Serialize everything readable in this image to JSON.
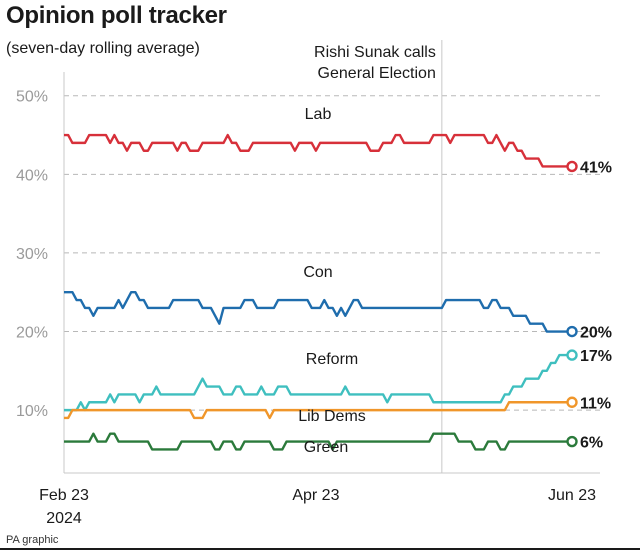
{
  "chart_data": {
    "type": "line",
    "title": "Opinion poll tracker",
    "subtitle": "(seven-day rolling average)",
    "credit": "PA graphic",
    "y_ticks": [
      "10%",
      "20%",
      "30%",
      "40%",
      "50%"
    ],
    "y_tick_values": [
      10,
      20,
      30,
      40,
      50
    ],
    "ylim": [
      2,
      52
    ],
    "x_ticks": [
      {
        "label": "Feb 23",
        "sublabel": "2024",
        "day": 0
      },
      {
        "label": "Apr 23",
        "sublabel": "",
        "day": 60
      },
      {
        "label": "Jun 23",
        "sublabel": "",
        "day": 121
      }
    ],
    "xlim": [
      0,
      121
    ],
    "annotation": {
      "text_line1": "Rishi Sunak calls",
      "text_line2": "General Election",
      "day": 90
    },
    "grid": "dashed-horizontal",
    "series": [
      {
        "name": "Lab",
        "color": "#d7303a",
        "end_label": "41%",
        "values": [
          45,
          45,
          44,
          44,
          44,
          44,
          45,
          45,
          45,
          45,
          45,
          44,
          45,
          44,
          44,
          43,
          44,
          44,
          44,
          43,
          43,
          44,
          44,
          44,
          44,
          44,
          44,
          43,
          44,
          44,
          43,
          43,
          43,
          44,
          44,
          44,
          44,
          44,
          44,
          45,
          44,
          44,
          43,
          43,
          43,
          44,
          44,
          44,
          44,
          44,
          44,
          44,
          44,
          44,
          44,
          43,
          44,
          44,
          44,
          44,
          43,
          44,
          44,
          44,
          44,
          44,
          44,
          44,
          44,
          44,
          44,
          44,
          44,
          43,
          43,
          43,
          44,
          44,
          44,
          45,
          45,
          44,
          44,
          44,
          44,
          44,
          44,
          44,
          45,
          45,
          45,
          45,
          44,
          45,
          45,
          45,
          45,
          45,
          45,
          45,
          45,
          44,
          44,
          45,
          44,
          43,
          44,
          44,
          43,
          43,
          42,
          42,
          42,
          42,
          41,
          41,
          41,
          41,
          41,
          41,
          41,
          41
        ]
      },
      {
        "name": "Con",
        "color": "#1f6dad",
        "end_label": "20%",
        "values": [
          25,
          25,
          25,
          24,
          24,
          23,
          23,
          22,
          23,
          23,
          23,
          23,
          23,
          24,
          23,
          24,
          25,
          25,
          24,
          24,
          23,
          23,
          23,
          23,
          23,
          23,
          24,
          24,
          24,
          24,
          24,
          24,
          24,
          23,
          23,
          23,
          22,
          21,
          23,
          23,
          23,
          23,
          23,
          24,
          24,
          24,
          23,
          23,
          23,
          23,
          23,
          24,
          24,
          24,
          24,
          24,
          24,
          24,
          24,
          23,
          23,
          23,
          24,
          23,
          23,
          22,
          23,
          22,
          23,
          24,
          24,
          23,
          23,
          23,
          23,
          23,
          23,
          23,
          23,
          23,
          23,
          23,
          23,
          23,
          23,
          23,
          23,
          23,
          23,
          23,
          23,
          24,
          24,
          24,
          24,
          24,
          24,
          24,
          24,
          24,
          23,
          23,
          24,
          24,
          23,
          23,
          23,
          22,
          22,
          22,
          22,
          21,
          21,
          21,
          21,
          20,
          20,
          20,
          20,
          20,
          20,
          20
        ]
      },
      {
        "name": "Reform",
        "color": "#3fbfbf",
        "end_label": "17%",
        "values": [
          10,
          10,
          10,
          10,
          11,
          10,
          11,
          11,
          11,
          11,
          11,
          12,
          11,
          12,
          12,
          12,
          12,
          12,
          11,
          12,
          12,
          12,
          13,
          12,
          12,
          12,
          12,
          12,
          12,
          12,
          12,
          12,
          13,
          14,
          13,
          13,
          13,
          13,
          12,
          12,
          12,
          13,
          13,
          12,
          12,
          12,
          12,
          13,
          12,
          12,
          12,
          13,
          13,
          13,
          12,
          12,
          12,
          12,
          12,
          12,
          12,
          12,
          12,
          12,
          12,
          12,
          12,
          13,
          12,
          12,
          12,
          12,
          12,
          12,
          12,
          12,
          12,
          11,
          12,
          12,
          12,
          12,
          12,
          12,
          12,
          12,
          12,
          12,
          11,
          11,
          11,
          11,
          11,
          11,
          11,
          11,
          11,
          11,
          11,
          11,
          11,
          11,
          11,
          11,
          11,
          12,
          12,
          13,
          13,
          13,
          14,
          14,
          14,
          14,
          15,
          15,
          16,
          16,
          17,
          17,
          17,
          17
        ]
      },
      {
        "name": "Lib Dems",
        "color": "#f0962a",
        "end_label": "11%",
        "values": [
          9,
          9,
          10,
          10,
          10,
          10,
          10,
          10,
          10,
          10,
          10,
          10,
          10,
          10,
          10,
          10,
          10,
          10,
          10,
          10,
          10,
          10,
          10,
          10,
          10,
          10,
          10,
          10,
          10,
          10,
          10,
          9,
          9,
          9,
          10,
          10,
          10,
          10,
          10,
          10,
          10,
          10,
          10,
          10,
          10,
          10,
          10,
          10,
          10,
          9,
          10,
          10,
          10,
          10,
          10,
          10,
          10,
          10,
          10,
          10,
          10,
          10,
          10,
          10,
          10,
          10,
          10,
          10,
          10,
          10,
          10,
          10,
          10,
          10,
          10,
          10,
          10,
          10,
          10,
          10,
          10,
          10,
          10,
          10,
          10,
          10,
          10,
          10,
          10,
          10,
          10,
          10,
          10,
          10,
          10,
          10,
          10,
          10,
          10,
          10,
          10,
          10,
          10,
          10,
          10,
          10,
          11,
          11,
          11,
          11,
          11,
          11,
          11,
          11,
          11,
          11,
          11,
          11,
          11,
          11,
          11,
          11
        ]
      },
      {
        "name": "Green",
        "color": "#2b7a3b",
        "end_label": "6%",
        "values": [
          6,
          6,
          6,
          6,
          6,
          6,
          6,
          7,
          6,
          6,
          6,
          7,
          7,
          6,
          6,
          6,
          6,
          6,
          6,
          6,
          6,
          5,
          5,
          5,
          5,
          5,
          5,
          5,
          6,
          6,
          6,
          6,
          6,
          6,
          6,
          6,
          5,
          5,
          6,
          6,
          6,
          5,
          5,
          6,
          6,
          6,
          6,
          6,
          6,
          6,
          5,
          5,
          5,
          6,
          6,
          6,
          6,
          6,
          6,
          6,
          6,
          6,
          6,
          6,
          5,
          6,
          6,
          6,
          6,
          6,
          6,
          6,
          6,
          6,
          6,
          6,
          6,
          6,
          6,
          6,
          6,
          6,
          6,
          6,
          6,
          6,
          6,
          6,
          7,
          7,
          7,
          7,
          7,
          7,
          6,
          6,
          6,
          6,
          5,
          5,
          5,
          6,
          6,
          6,
          5,
          5,
          6,
          6,
          6,
          6,
          6,
          6,
          6,
          6,
          6,
          6,
          6,
          6,
          6,
          6,
          6,
          6
        ]
      }
    ]
  }
}
